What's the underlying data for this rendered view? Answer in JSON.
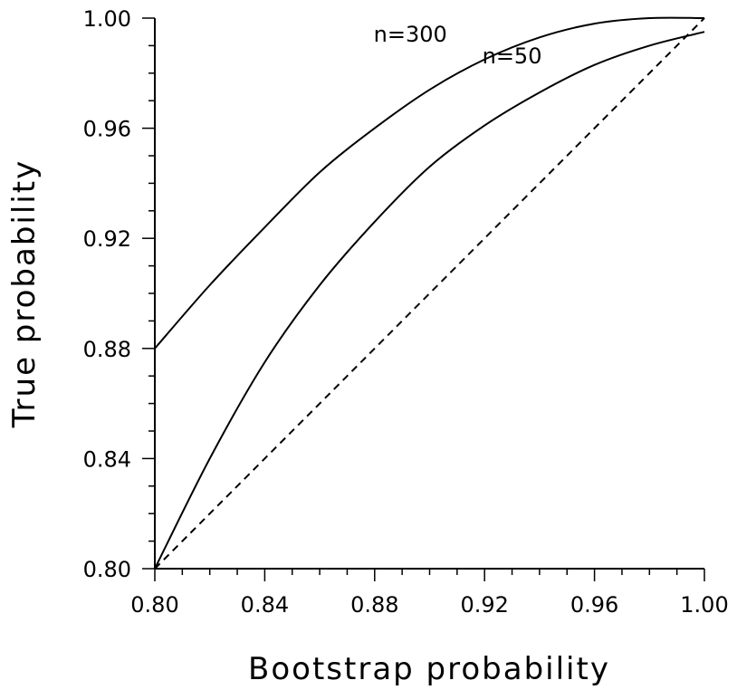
{
  "chart_data": {
    "type": "line",
    "title": "",
    "xlabel": "Bootstrap probability",
    "ylabel": "True probability",
    "xlim": [
      0.8,
      1.0
    ],
    "ylim": [
      0.8,
      1.0
    ],
    "x_ticks": [
      "0.80",
      "0.84",
      "0.88",
      "0.92",
      "0.96",
      "1.00"
    ],
    "y_ticks": [
      "0.80",
      "0.84",
      "0.88",
      "0.92",
      "0.96",
      "1.00"
    ],
    "x_tick_values": [
      0.8,
      0.84,
      0.88,
      0.92,
      0.96,
      1.0
    ],
    "y_tick_values": [
      0.8,
      0.84,
      0.88,
      0.92,
      0.96,
      1.0
    ],
    "minor_tick_step": 0.01,
    "grid": false,
    "series": [
      {
        "name": "n=300",
        "style": "solid",
        "x": [
          0.8,
          0.82,
          0.84,
          0.86,
          0.88,
          0.9,
          0.92,
          0.94,
          0.96,
          0.98,
          1.0
        ],
        "y": [
          0.88,
          0.903,
          0.924,
          0.944,
          0.96,
          0.974,
          0.985,
          0.993,
          0.998,
          1.0,
          1.0
        ]
      },
      {
        "name": "n=50",
        "style": "solid",
        "x": [
          0.8,
          0.82,
          0.84,
          0.86,
          0.88,
          0.9,
          0.92,
          0.94,
          0.96,
          0.98,
          1.0
        ],
        "y": [
          0.8,
          0.84,
          0.875,
          0.903,
          0.926,
          0.946,
          0.961,
          0.973,
          0.983,
          0.99,
          0.995
        ]
      },
      {
        "name": "",
        "style": "dashed",
        "x": [
          0.8,
          1.0
        ],
        "y": [
          0.8,
          1.0
        ]
      }
    ],
    "annotations": [
      {
        "text": "n=300",
        "x": 0.893,
        "y": 0.9915
      },
      {
        "text": "n=50",
        "x": 0.93,
        "y": 0.9835
      }
    ]
  }
}
